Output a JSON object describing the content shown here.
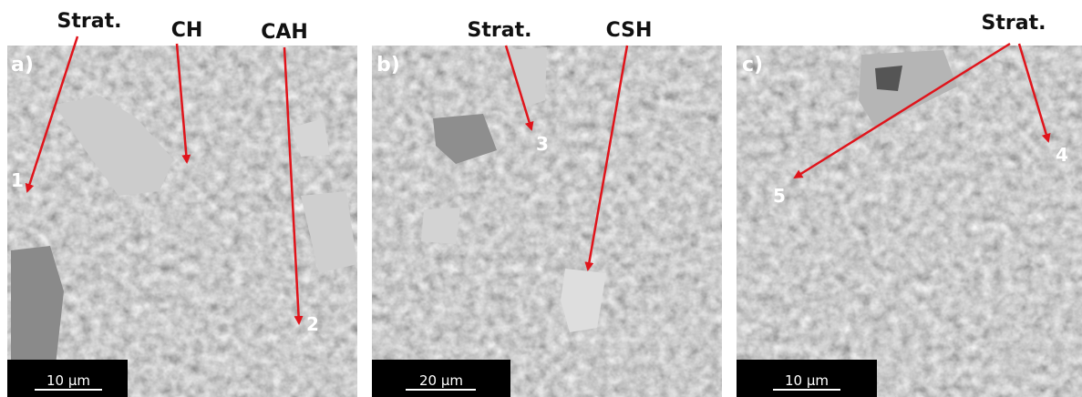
{
  "panels": [
    {
      "label": "a)",
      "scale_bar": "10 µm",
      "points": [
        "1",
        "2"
      ],
      "annotations": [
        "Strat.",
        "CH",
        "CAH"
      ]
    },
    {
      "label": "b)",
      "scale_bar": "20 µm",
      "points": [
        "3"
      ],
      "annotations": [
        "Strat.",
        "CSH"
      ]
    },
    {
      "label": "c)",
      "scale_bar": "10 µm",
      "points": [
        "4",
        "5"
      ],
      "annotations": [
        "Strat."
      ]
    }
  ]
}
